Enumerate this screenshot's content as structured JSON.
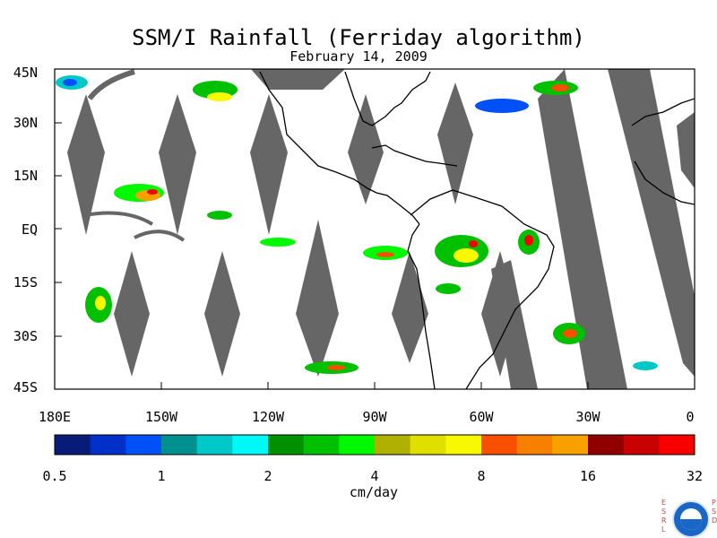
{
  "title": "SSM/I Rainfall (Ferriday algorithm)",
  "subtitle": "February 14, 2009",
  "latitude_labels": [
    "45N",
    "30N",
    "15N",
    "EQ",
    "15S",
    "30S",
    "45S"
  ],
  "longitude_labels": [
    "180E",
    "150W",
    "120W",
    "90W",
    "60W",
    "30W",
    "0"
  ],
  "colorbar": {
    "tick_labels": [
      "0.5",
      "1",
      "2",
      "4",
      "8",
      "16",
      "32"
    ],
    "unit": "cm/day",
    "colors": [
      "#081b78",
      "#0030c8",
      "#0050f8",
      "#009090",
      "#00c8c8",
      "#00f8f8",
      "#009000",
      "#00c000",
      "#00f800",
      "#b0b000",
      "#e0e000",
      "#f8f800",
      "#f85000",
      "#f88000",
      "#f8a000",
      "#900000",
      "#c80000",
      "#f80000"
    ]
  },
  "colors": {
    "no_data": "#666666",
    "coastline": "#000000"
  },
  "logo": {
    "left_letters": "ESRL",
    "right_letters": "PSD",
    "emblem": "noaa-logo"
  }
}
